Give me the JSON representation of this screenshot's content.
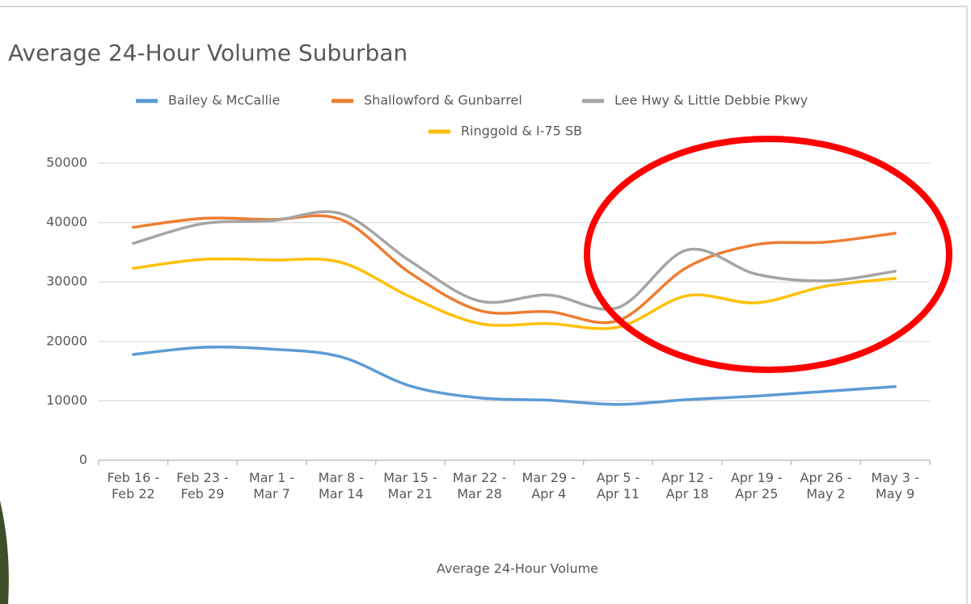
{
  "chart_data": {
    "type": "line",
    "title": "Average 24-Hour Volume Suburban",
    "x_label": "Average 24-Hour Volume",
    "categories": [
      "Feb 16 - Feb 22",
      "Feb 23 - Feb 29",
      "Mar 1 - Mar 7",
      "Mar 8 - Mar 14",
      "Mar 15 - Mar 21",
      "Mar 22 - Mar 28",
      "Mar 29 - Apr 4",
      "Apr 5 - Apr 11",
      "Apr 12 - Apr 18",
      "Apr 19 - Apr 25",
      "Apr 26 - May 2",
      "May 3 - May 9"
    ],
    "series": [
      {
        "name": "Bailey & McCallie",
        "color": "#5b9bd5",
        "values": [
          17800,
          19000,
          18700,
          17400,
          12500,
          10500,
          10100,
          9400,
          10200,
          10800,
          11600,
          12400
        ]
      },
      {
        "name": "Shallowford & Gunbarrel",
        "color": "#ed7d31",
        "values": [
          39200,
          40700,
          40500,
          40500,
          31500,
          25200,
          25000,
          23500,
          32500,
          36300,
          36700,
          38200
        ]
      },
      {
        "name": "Lee Hwy & Little Debbie Pkwy",
        "color": "#a5a5a5",
        "values": [
          36500,
          39800,
          40300,
          41500,
          33500,
          26800,
          27800,
          25700,
          35400,
          31300,
          30200,
          31800
        ]
      },
      {
        "name": "Ringgold & I-75 SB",
        "color": "#ffc000",
        "values": [
          32300,
          33800,
          33700,
          33300,
          27500,
          23000,
          23000,
          22400,
          27700,
          26500,
          29300,
          30600
        ]
      }
    ],
    "ylim": [
      0,
      50000
    ],
    "yticks": [
      0,
      10000,
      20000,
      30000,
      40000,
      50000
    ],
    "grid": true,
    "smooth": true,
    "legend": "top"
  }
}
